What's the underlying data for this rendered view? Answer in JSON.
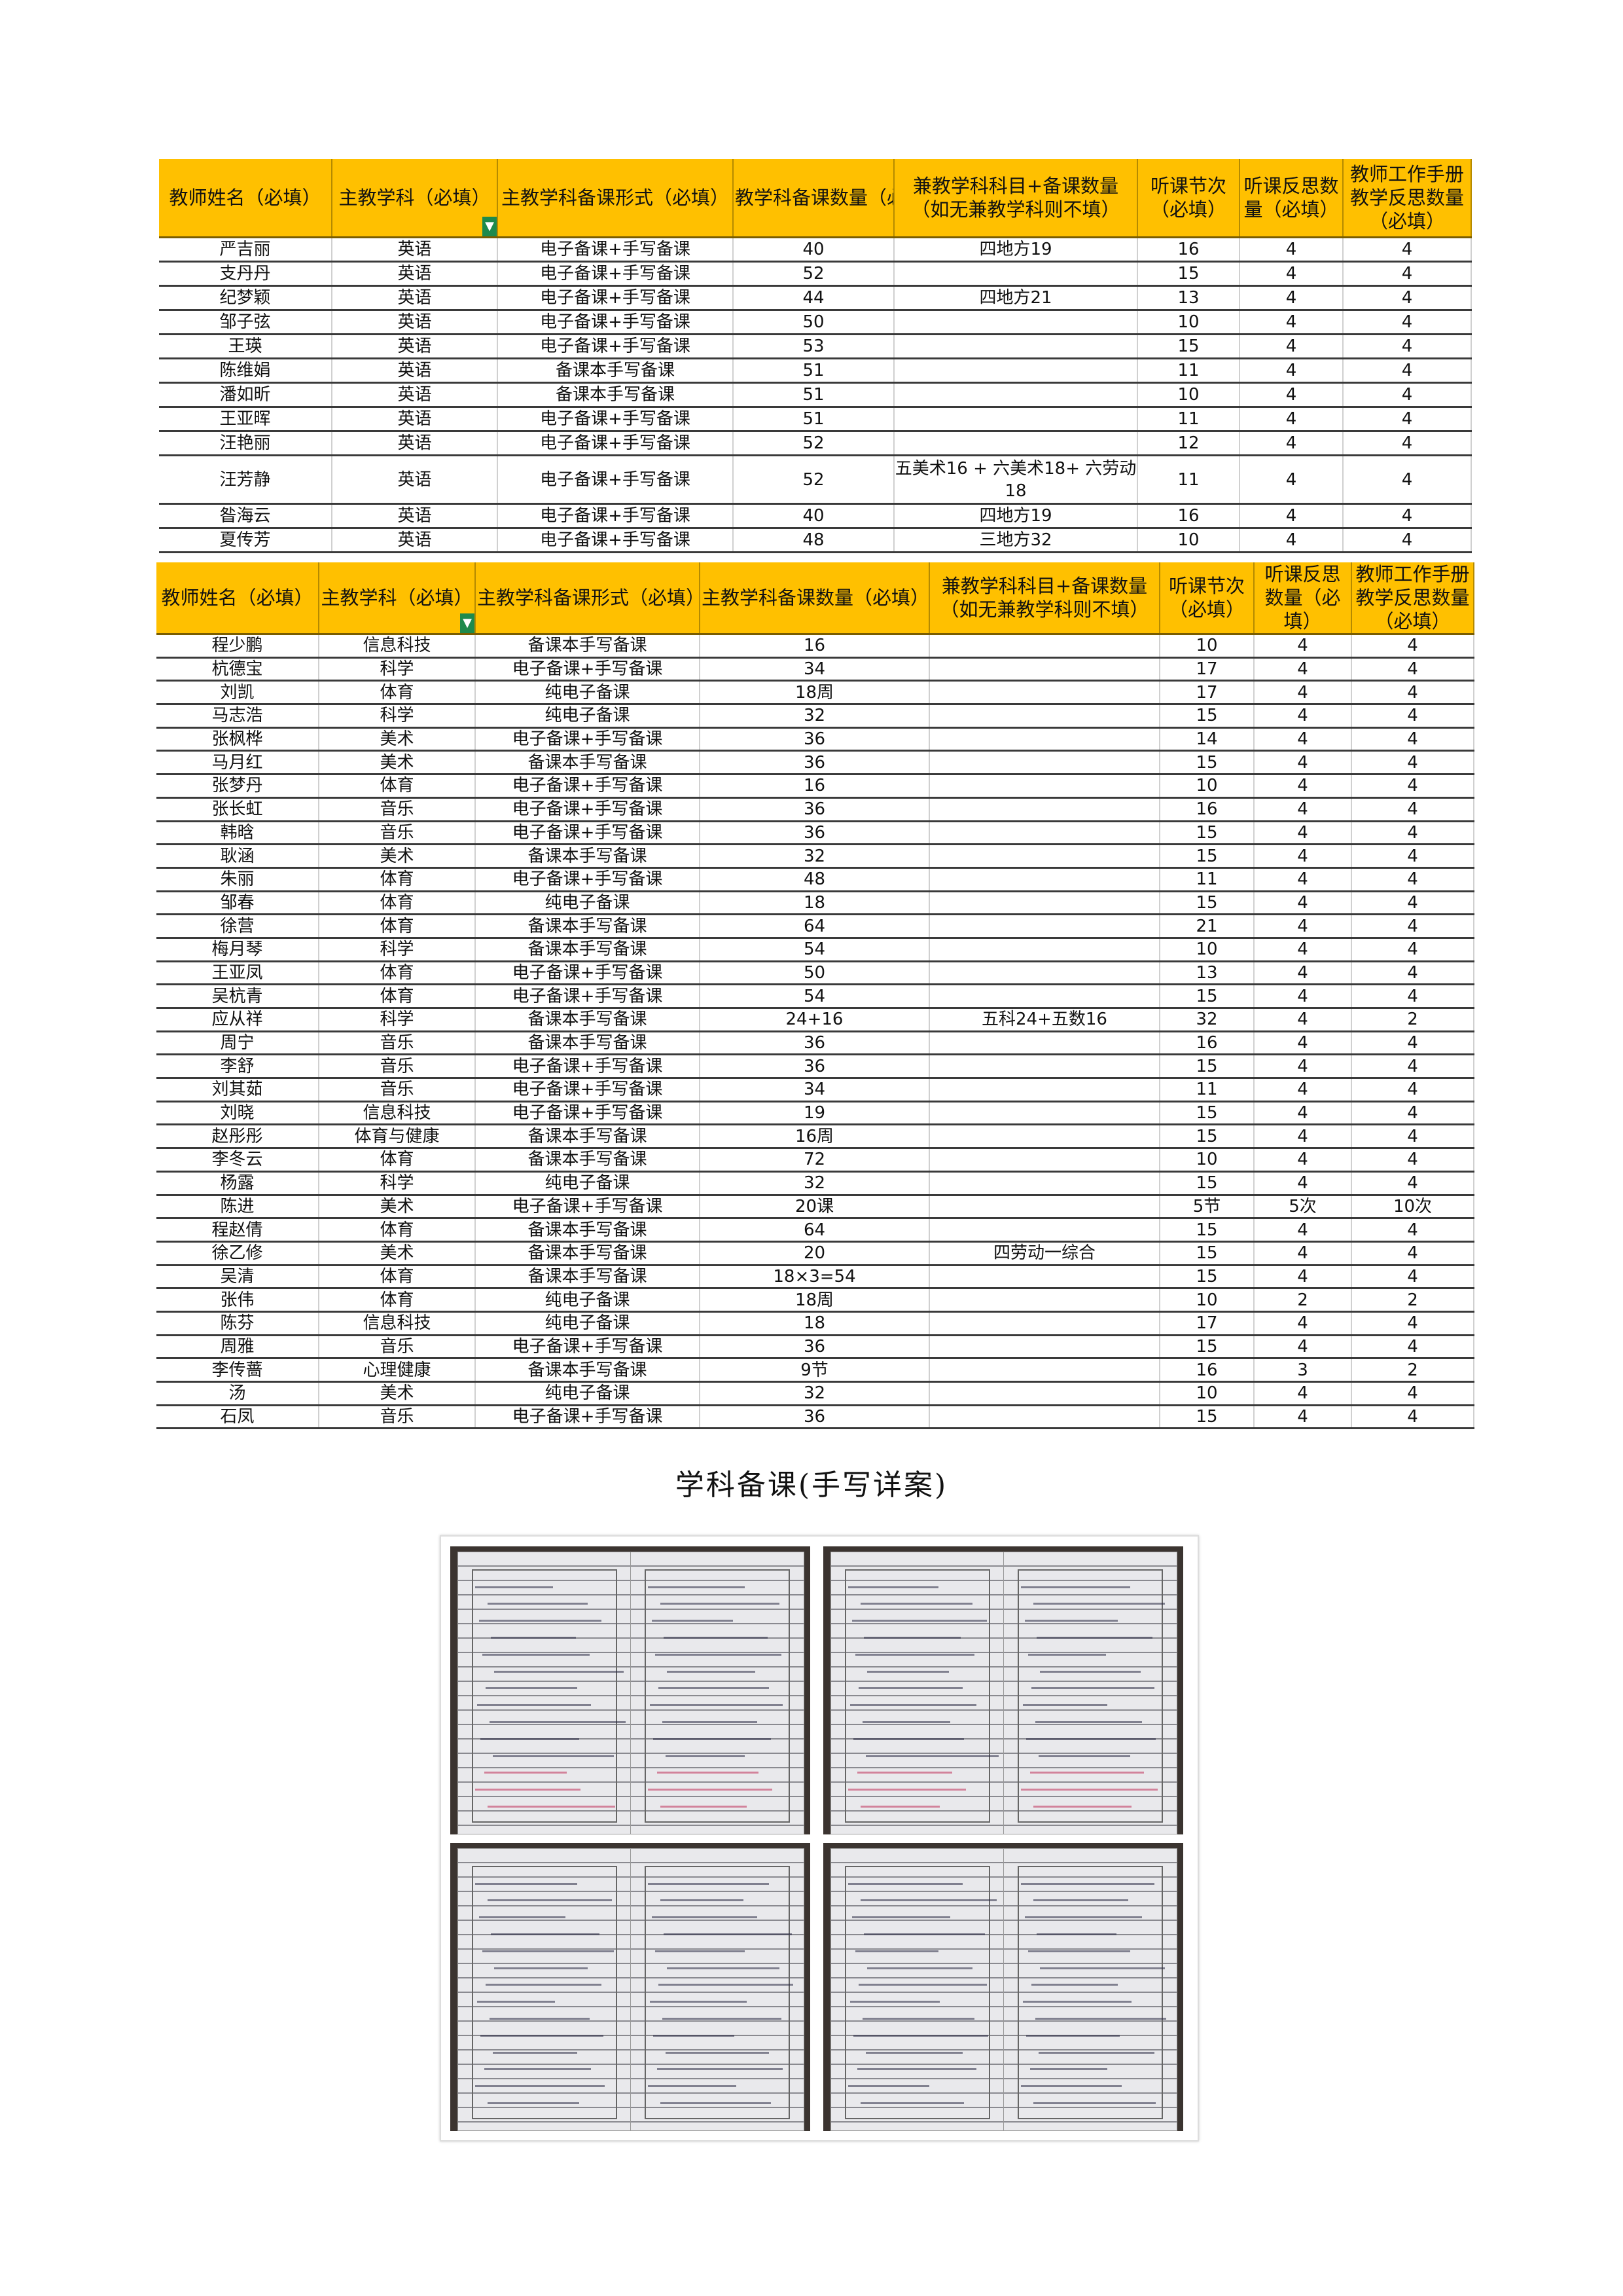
{
  "table1": {
    "headers": [
      "教师姓名（必填）",
      "主教学科（必填）",
      "主教学科备课形式（必填）",
      "教学科备课数量（必填）",
      "兼教学科科目+备课数量（如无兼教学科则不填）",
      "听课节次（必填）",
      "听课反思数量（必填）",
      "教师工作手册教学反思数量（必填）"
    ],
    "rows": [
      [
        "严吉丽",
        "英语",
        "电子备课+手写备课",
        "40",
        "四地方19",
        "16",
        "4",
        "4"
      ],
      [
        "支丹丹",
        "英语",
        "电子备课+手写备课",
        "52",
        "",
        "15",
        "4",
        "4"
      ],
      [
        "纪梦颖",
        "英语",
        "电子备课+手写备课",
        "44",
        "四地方21",
        "13",
        "4",
        "4"
      ],
      [
        "邹子弦",
        "英语",
        "电子备课+手写备课",
        "50",
        "",
        "10",
        "4",
        "4"
      ],
      [
        "王瑛",
        "英语",
        "电子备课+手写备课",
        "53",
        "",
        "15",
        "4",
        "4"
      ],
      [
        "陈维娟",
        "英语",
        "备课本手写备课",
        "51",
        "",
        "11",
        "4",
        "4"
      ],
      [
        "潘如昕",
        "英语",
        "备课本手写备课",
        "51",
        "",
        "10",
        "4",
        "4"
      ],
      [
        "王亚晖",
        "英语",
        "电子备课+手写备课",
        "51",
        "",
        "11",
        "4",
        "4"
      ],
      [
        "汪艳丽",
        "英语",
        "电子备课+手写备课",
        "52",
        "",
        "12",
        "4",
        "4"
      ],
      [
        "汪芳静",
        "英语",
        "电子备课+手写备课",
        "52",
        "五美术16 + 六美术18+ 六劳动18",
        "11",
        "4",
        "4"
      ],
      [
        "昝海云",
        "英语",
        "电子备课+手写备课",
        "40",
        "四地方19",
        "16",
        "4",
        "4"
      ],
      [
        "夏传芳",
        "英语",
        "电子备课+手写备课",
        "48",
        "三地方32",
        "10",
        "4",
        "4"
      ]
    ]
  },
  "table2": {
    "headers": [
      "教师姓名（必填）",
      "主教学科（必填）",
      "主教学科备课形式（必填）",
      "主教学科备课数量（必填）",
      "兼教学科科目+备课数量（如无兼教学科则不填）",
      "听课节次（必填）",
      "听课反思数量（必填）",
      "教师工作手册教学反思数量（必填）"
    ],
    "rows": [
      [
        "程少鹏",
        "信息科技",
        "备课本手写备课",
        "16",
        "",
        "10",
        "4",
        "4"
      ],
      [
        "杭德宝",
        "科学",
        "电子备课+手写备课",
        "34",
        "",
        "17",
        "4",
        "4"
      ],
      [
        "刘凯",
        "体育",
        "纯电子备课",
        "18周",
        "",
        "17",
        "4",
        "4"
      ],
      [
        "马志浩",
        "科学",
        "纯电子备课",
        "32",
        "",
        "15",
        "4",
        "4"
      ],
      [
        "张枫桦",
        "美术",
        "电子备课+手写备课",
        "36",
        "",
        "14",
        "4",
        "4"
      ],
      [
        "马月红",
        "美术",
        "备课本手写备课",
        "36",
        "",
        "15",
        "4",
        "4"
      ],
      [
        "张梦丹",
        "体育",
        "电子备课+手写备课",
        "16",
        "",
        "10",
        "4",
        "4"
      ],
      [
        "张长虹",
        "音乐",
        "电子备课+手写备课",
        "36",
        "",
        "16",
        "4",
        "4"
      ],
      [
        "韩晗",
        "音乐",
        "电子备课+手写备课",
        "36",
        "",
        "15",
        "4",
        "4"
      ],
      [
        "耿涵",
        "美术",
        "备课本手写备课",
        "32",
        "",
        "15",
        "4",
        "4"
      ],
      [
        "朱丽",
        "体育",
        "电子备课+手写备课",
        "48",
        "",
        "11",
        "4",
        "4"
      ],
      [
        "邹春",
        "体育",
        "纯电子备课",
        "18",
        "",
        "15",
        "4",
        "4"
      ],
      [
        "徐营",
        "体育",
        "备课本手写备课",
        "64",
        "",
        "21",
        "4",
        "4"
      ],
      [
        "梅月琴",
        "科学",
        "备课本手写备课",
        "54",
        "",
        "10",
        "4",
        "4"
      ],
      [
        "王亚凤",
        "体育",
        "电子备课+手写备课",
        "50",
        "",
        "13",
        "4",
        "4"
      ],
      [
        "吴杭青",
        "体育",
        "电子备课+手写备课",
        "54",
        "",
        "15",
        "4",
        "4"
      ],
      [
        "应从祥",
        "科学",
        "备课本手写备课",
        "24+16",
        "五科24+五数16",
        "32",
        "4",
        "2"
      ],
      [
        "周宁",
        "音乐",
        "备课本手写备课",
        "36",
        "",
        "16",
        "4",
        "4"
      ],
      [
        "李舒",
        "音乐",
        "电子备课+手写备课",
        "36",
        "",
        "15",
        "4",
        "4"
      ],
      [
        "刘其茹",
        "音乐",
        "电子备课+手写备课",
        "34",
        "",
        "11",
        "4",
        "4"
      ],
      [
        "刘晓",
        "信息科技",
        "电子备课+手写备课",
        "19",
        "",
        "15",
        "4",
        "4"
      ],
      [
        "赵彤彤",
        "体育与健康",
        "备课本手写备课",
        "16周",
        "",
        "15",
        "4",
        "4"
      ],
      [
        "李冬云",
        "体育",
        "备课本手写备课",
        "72",
        "",
        "10",
        "4",
        "4"
      ],
      [
        "杨露",
        "科学",
        "纯电子备课",
        "32",
        "",
        "15",
        "4",
        "4"
      ],
      [
        "陈进",
        "美术",
        "电子备课+手写备课",
        "20课",
        "",
        "5节",
        "5次",
        "10次"
      ],
      [
        "程赵倩",
        "体育",
        "备课本手写备课",
        "64",
        "",
        "15",
        "4",
        "4"
      ],
      [
        "徐乙修",
        "美术",
        "备课本手写备课",
        "20",
        "四劳动一综合",
        "15",
        "4",
        "4"
      ],
      [
        "吴清",
        "体育",
        "备课本手写备课",
        "18×3=54",
        "",
        "15",
        "4",
        "4"
      ],
      [
        "张伟",
        "体育",
        "纯电子备课",
        "18周",
        "",
        "10",
        "2",
        "2"
      ],
      [
        "陈芬",
        "信息科技",
        "纯电子备课",
        "18",
        "",
        "17",
        "4",
        "4"
      ],
      [
        "周雅",
        "音乐",
        "电子备课+手写备课",
        "36",
        "",
        "15",
        "4",
        "4"
      ],
      [
        "李传蔷",
        "心理健康",
        "备课本手写备课",
        "9节",
        "",
        "16",
        "3",
        "2"
      ],
      [
        "汤",
        "美术",
        "纯电子备课",
        "32",
        "",
        "10",
        "4",
        "4"
      ],
      [
        "石凤",
        "音乐",
        "电子备课+手写备课",
        "36",
        "",
        "15",
        "4",
        "4"
      ]
    ]
  },
  "section_title": "学科备课(手写详案)",
  "colors": {
    "header_bg": "#FFC000",
    "filter_icon": "#1e8a4c"
  },
  "photos": [
    "handwritten-lesson-plan-1",
    "handwritten-lesson-plan-2",
    "handwritten-lesson-plan-3",
    "handwritten-lesson-plan-4"
  ]
}
